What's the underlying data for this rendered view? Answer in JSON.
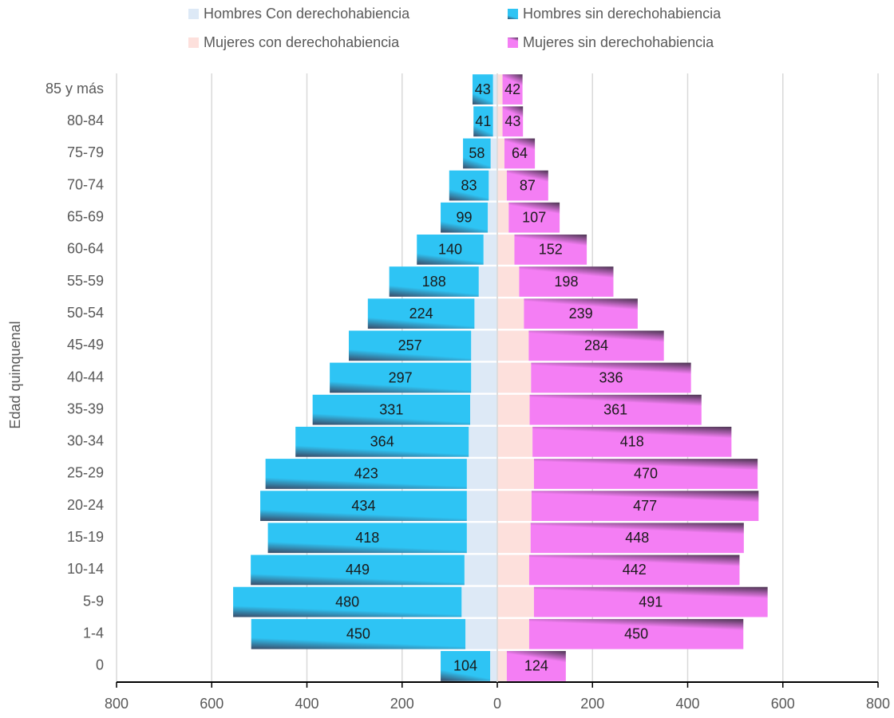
{
  "chart_data": {
    "type": "pyramid",
    "y_label": "Edad quinquenal",
    "categories": [
      "85 y más",
      "80-84",
      "75-79",
      "70-74",
      "65-69",
      "60-64",
      "55-59",
      "50-54",
      "45-49",
      "40-44",
      "35-39",
      "30-34",
      "25-29",
      "20-24",
      "15-19",
      "10-14",
      "5-9",
      "1-4",
      "0"
    ],
    "series": [
      {
        "name": "Hombres Con derechohabiencia",
        "color": "#dde9f6",
        "side": "left",
        "labels": false,
        "values": [
          9,
          9,
          14,
          18,
          20,
          29,
          39,
          48,
          55,
          55,
          57,
          60,
          64,
          64,
          64,
          69,
          75,
          67,
          15
        ]
      },
      {
        "name": "Hombres sin derechohabiencia",
        "color": "#2ec4f4",
        "side": "left",
        "labels": true,
        "values": [
          43,
          41,
          58,
          83,
          99,
          140,
          188,
          224,
          257,
          297,
          331,
          364,
          423,
          434,
          418,
          449,
          480,
          450,
          104
        ]
      },
      {
        "name": "Mujeres con derechohabiencia",
        "color": "#fde0dc",
        "side": "right",
        "labels": false,
        "values": [
          11,
          11,
          15,
          20,
          24,
          36,
          46,
          56,
          66,
          71,
          68,
          74,
          77,
          72,
          70,
          67,
          77,
          67,
          20
        ]
      },
      {
        "name": "Mujeres sin derechohabiencia",
        "color": "#f47ef4",
        "side": "right",
        "labels": true,
        "values": [
          42,
          43,
          64,
          87,
          107,
          152,
          198,
          239,
          284,
          336,
          361,
          418,
          470,
          477,
          448,
          442,
          491,
          450,
          124
        ]
      }
    ],
    "xlim": [
      -800,
      800
    ],
    "xticks": [
      {
        "value": -800,
        "label": "800"
      },
      {
        "value": -600,
        "label": "600"
      },
      {
        "value": -400,
        "label": "400"
      },
      {
        "value": -200,
        "label": "200"
      },
      0,
      200,
      400,
      600,
      800
    ],
    "grid": true
  }
}
